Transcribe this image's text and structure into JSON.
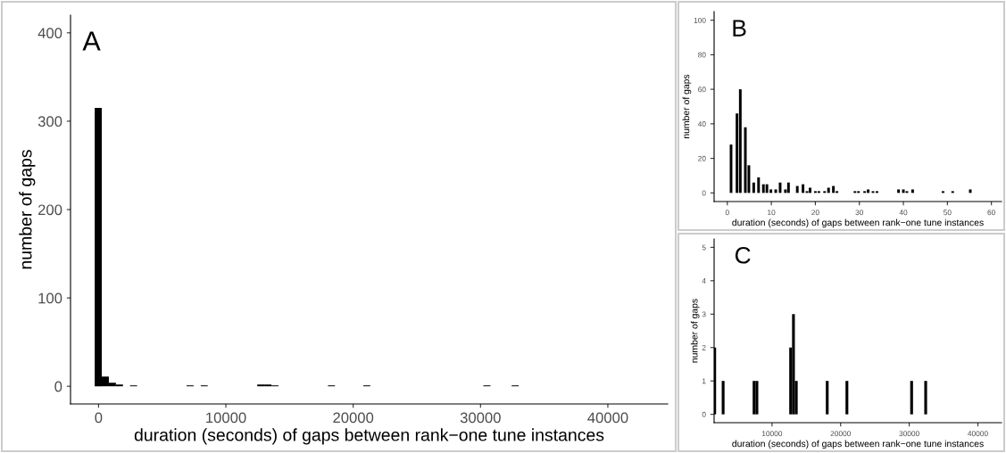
{
  "chart_data": [
    {
      "type": "histogram",
      "xlabel": "duration (seconds) of gaps between rank−one tune instances",
      "ylabel": "number of gaps",
      "annotations": [
        "A"
      ],
      "color": "#000000",
      "bins": [
        -300,
        255,
        810,
        1365,
        1920,
        2475,
        3030,
        3585,
        4140,
        4695,
        5250,
        5805,
        6360,
        6915,
        7470,
        8025,
        8580,
        9135,
        9690,
        10245,
        10800,
        11355,
        11910,
        12465,
        13020,
        13575,
        14130,
        14685,
        15240,
        15795,
        16350,
        16905,
        17460,
        18015,
        18570,
        19125,
        19680,
        20235,
        20790,
        21345,
        21900,
        22455,
        23010,
        23565,
        24120,
        24675,
        25230,
        25785,
        26340,
        26895,
        27450,
        28005,
        28560,
        29115,
        29670,
        30225,
        30780,
        31335,
        31890,
        32445,
        33000
      ],
      "values": [
        315,
        11,
        4,
        2,
        0,
        1,
        0,
        0,
        0,
        0,
        0,
        0,
        0,
        1,
        0,
        1,
        0,
        0,
        0,
        0,
        0,
        0,
        0,
        2,
        2,
        1,
        0,
        0,
        0,
        0,
        0,
        0,
        0,
        1,
        0,
        0,
        0,
        0,
        1,
        0,
        0,
        0,
        0,
        0,
        0,
        0,
        0,
        0,
        0,
        0,
        0,
        0,
        0,
        0,
        0,
        1,
        0,
        0,
        0,
        1
      ],
      "xlim": [
        -2200,
        44700
      ],
      "xticks": [
        0,
        10000,
        20000,
        30000,
        40000
      ],
      "ylim": [
        -20,
        420
      ],
      "yticks": [
        0,
        100,
        200,
        300,
        400
      ]
    },
    {
      "type": "bar",
      "xlabel": "duration (seconds) of gaps between rank−one tune instances",
      "ylabel": "number of gaps",
      "annotations": [
        "B"
      ],
      "color": "#000000",
      "x": [
        0.85,
        2.2,
        2.95,
        4.1,
        4.9,
        6.0,
        7.1,
        8.2,
        9.0,
        9.9,
        11.0,
        12.0,
        13.2,
        13.9,
        15.9,
        17.2,
        18.1,
        18.8,
        20.0,
        20.8,
        22.1,
        23.0,
        24.1,
        24.9,
        29.0,
        29.8,
        31.2,
        32.0,
        33.1,
        34.0,
        38.9,
        40.0,
        40.8,
        42.1,
        49.0,
        51.2,
        55.2
      ],
      "values": [
        28,
        46,
        60,
        38,
        16,
        6,
        9,
        5,
        5,
        2,
        2,
        6,
        2,
        6,
        4,
        5,
        1,
        3,
        1,
        1,
        1,
        3,
        4,
        1,
        1,
        1,
        1,
        2,
        1,
        1,
        2,
        2,
        1,
        2,
        1,
        1,
        2
      ],
      "xlim": [
        -3,
        62.3
      ],
      "xticks": [
        0,
        10,
        20,
        30,
        40,
        50,
        60
      ],
      "ylim": [
        -5,
        105
      ],
      "yticks": [
        0,
        20,
        40,
        60,
        80,
        100
      ]
    },
    {
      "type": "histogram",
      "xlabel": "duration (seconds) of gaps between rank−one tune instances",
      "ylabel": "number of gaps",
      "annotations": [
        "C"
      ],
      "color": "#000000",
      "bins": [
        1440,
        1850,
        2260,
        2670,
        3080,
        3490,
        3900,
        4310,
        4720,
        5130,
        5540,
        5950,
        6360,
        6770,
        7180,
        7590,
        8000,
        8410,
        8820,
        9230,
        9640,
        10050,
        10460,
        10870,
        11280,
        11690,
        12100,
        12510,
        12920,
        13330,
        13740,
        14150,
        14560,
        14970,
        15380,
        15790,
        16200,
        16610,
        17020,
        17430,
        17840,
        18250,
        18660,
        19070,
        19480,
        19890,
        20300,
        20710,
        21120,
        21530,
        21940,
        22350,
        22760,
        23170,
        23580,
        23990,
        24400,
        24810,
        25220,
        25630,
        26040,
        26450,
        26860,
        27270,
        27680,
        28090,
        28500,
        28910,
        29320,
        29730,
        30140,
        30550,
        30960,
        31370,
        31780,
        32190,
        32600
      ],
      "values": [
        2,
        0,
        0,
        1,
        0,
        0,
        0,
        0,
        0,
        0,
        0,
        0,
        0,
        0,
        1,
        1,
        0,
        0,
        0,
        0,
        0,
        0,
        0,
        0,
        0,
        0,
        0,
        2,
        3,
        1,
        0,
        0,
        0,
        0,
        0,
        0,
        0,
        0,
        0,
        0,
        1,
        0,
        0,
        0,
        0,
        0,
        0,
        1,
        0,
        0,
        0,
        0,
        0,
        0,
        0,
        0,
        0,
        0,
        0,
        0,
        0,
        0,
        0,
        0,
        0,
        0,
        0,
        0,
        0,
        0,
        1,
        0,
        0,
        0,
        0,
        1
      ],
      "xlim": [
        1560,
        43450
      ],
      "xticks": [
        10000,
        20000,
        30000,
        40000
      ],
      "ylim": [
        -0.25,
        5.25
      ],
      "yticks": [
        0,
        1,
        2,
        3,
        4,
        5
      ]
    }
  ]
}
